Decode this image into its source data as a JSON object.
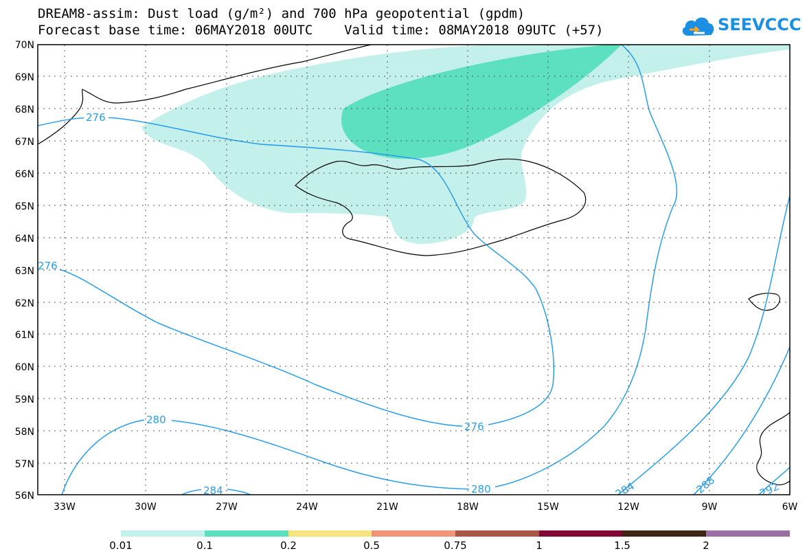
{
  "header": {
    "title_line1": "DREAM8-assim: Dust load (g/m²) and 700 hPa geopotential (gpdm)",
    "title_line2": "Forecast base time: 06MAY2018 00UTC    Valid time: 08MAY2018 09UTC (+57)"
  },
  "logo": {
    "text": "SEEVCCC",
    "icon": "cloud-icon",
    "color": "#1a8fe3"
  },
  "map": {
    "lat_labels": [
      "70N",
      "69N",
      "68N",
      "67N",
      "66N",
      "65N",
      "64N",
      "63N",
      "62N",
      "61N",
      "60N",
      "59N",
      "58N",
      "57N",
      "56N"
    ],
    "lon_labels": [
      "33W",
      "30W",
      "27W",
      "24W",
      "21W",
      "18W",
      "15W",
      "12W",
      "9W",
      "6W"
    ],
    "contour_labels": [
      "276",
      "276",
      "276",
      "280",
      "280",
      "284",
      "284",
      "288",
      "292"
    ],
    "contour_color": "#2a9de8",
    "coastline_color": "#000000"
  },
  "colorbar": {
    "labels": [
      "0.01",
      "0.1",
      "0.2",
      "0.5",
      "0.75",
      "1",
      "1.5",
      "2"
    ],
    "colors": [
      "#c4f0eb",
      "#5ce0bf",
      "#f7e47f",
      "#ef9478",
      "#a85648",
      "#820636",
      "#3d2615",
      "#9a6fa5"
    ]
  }
}
